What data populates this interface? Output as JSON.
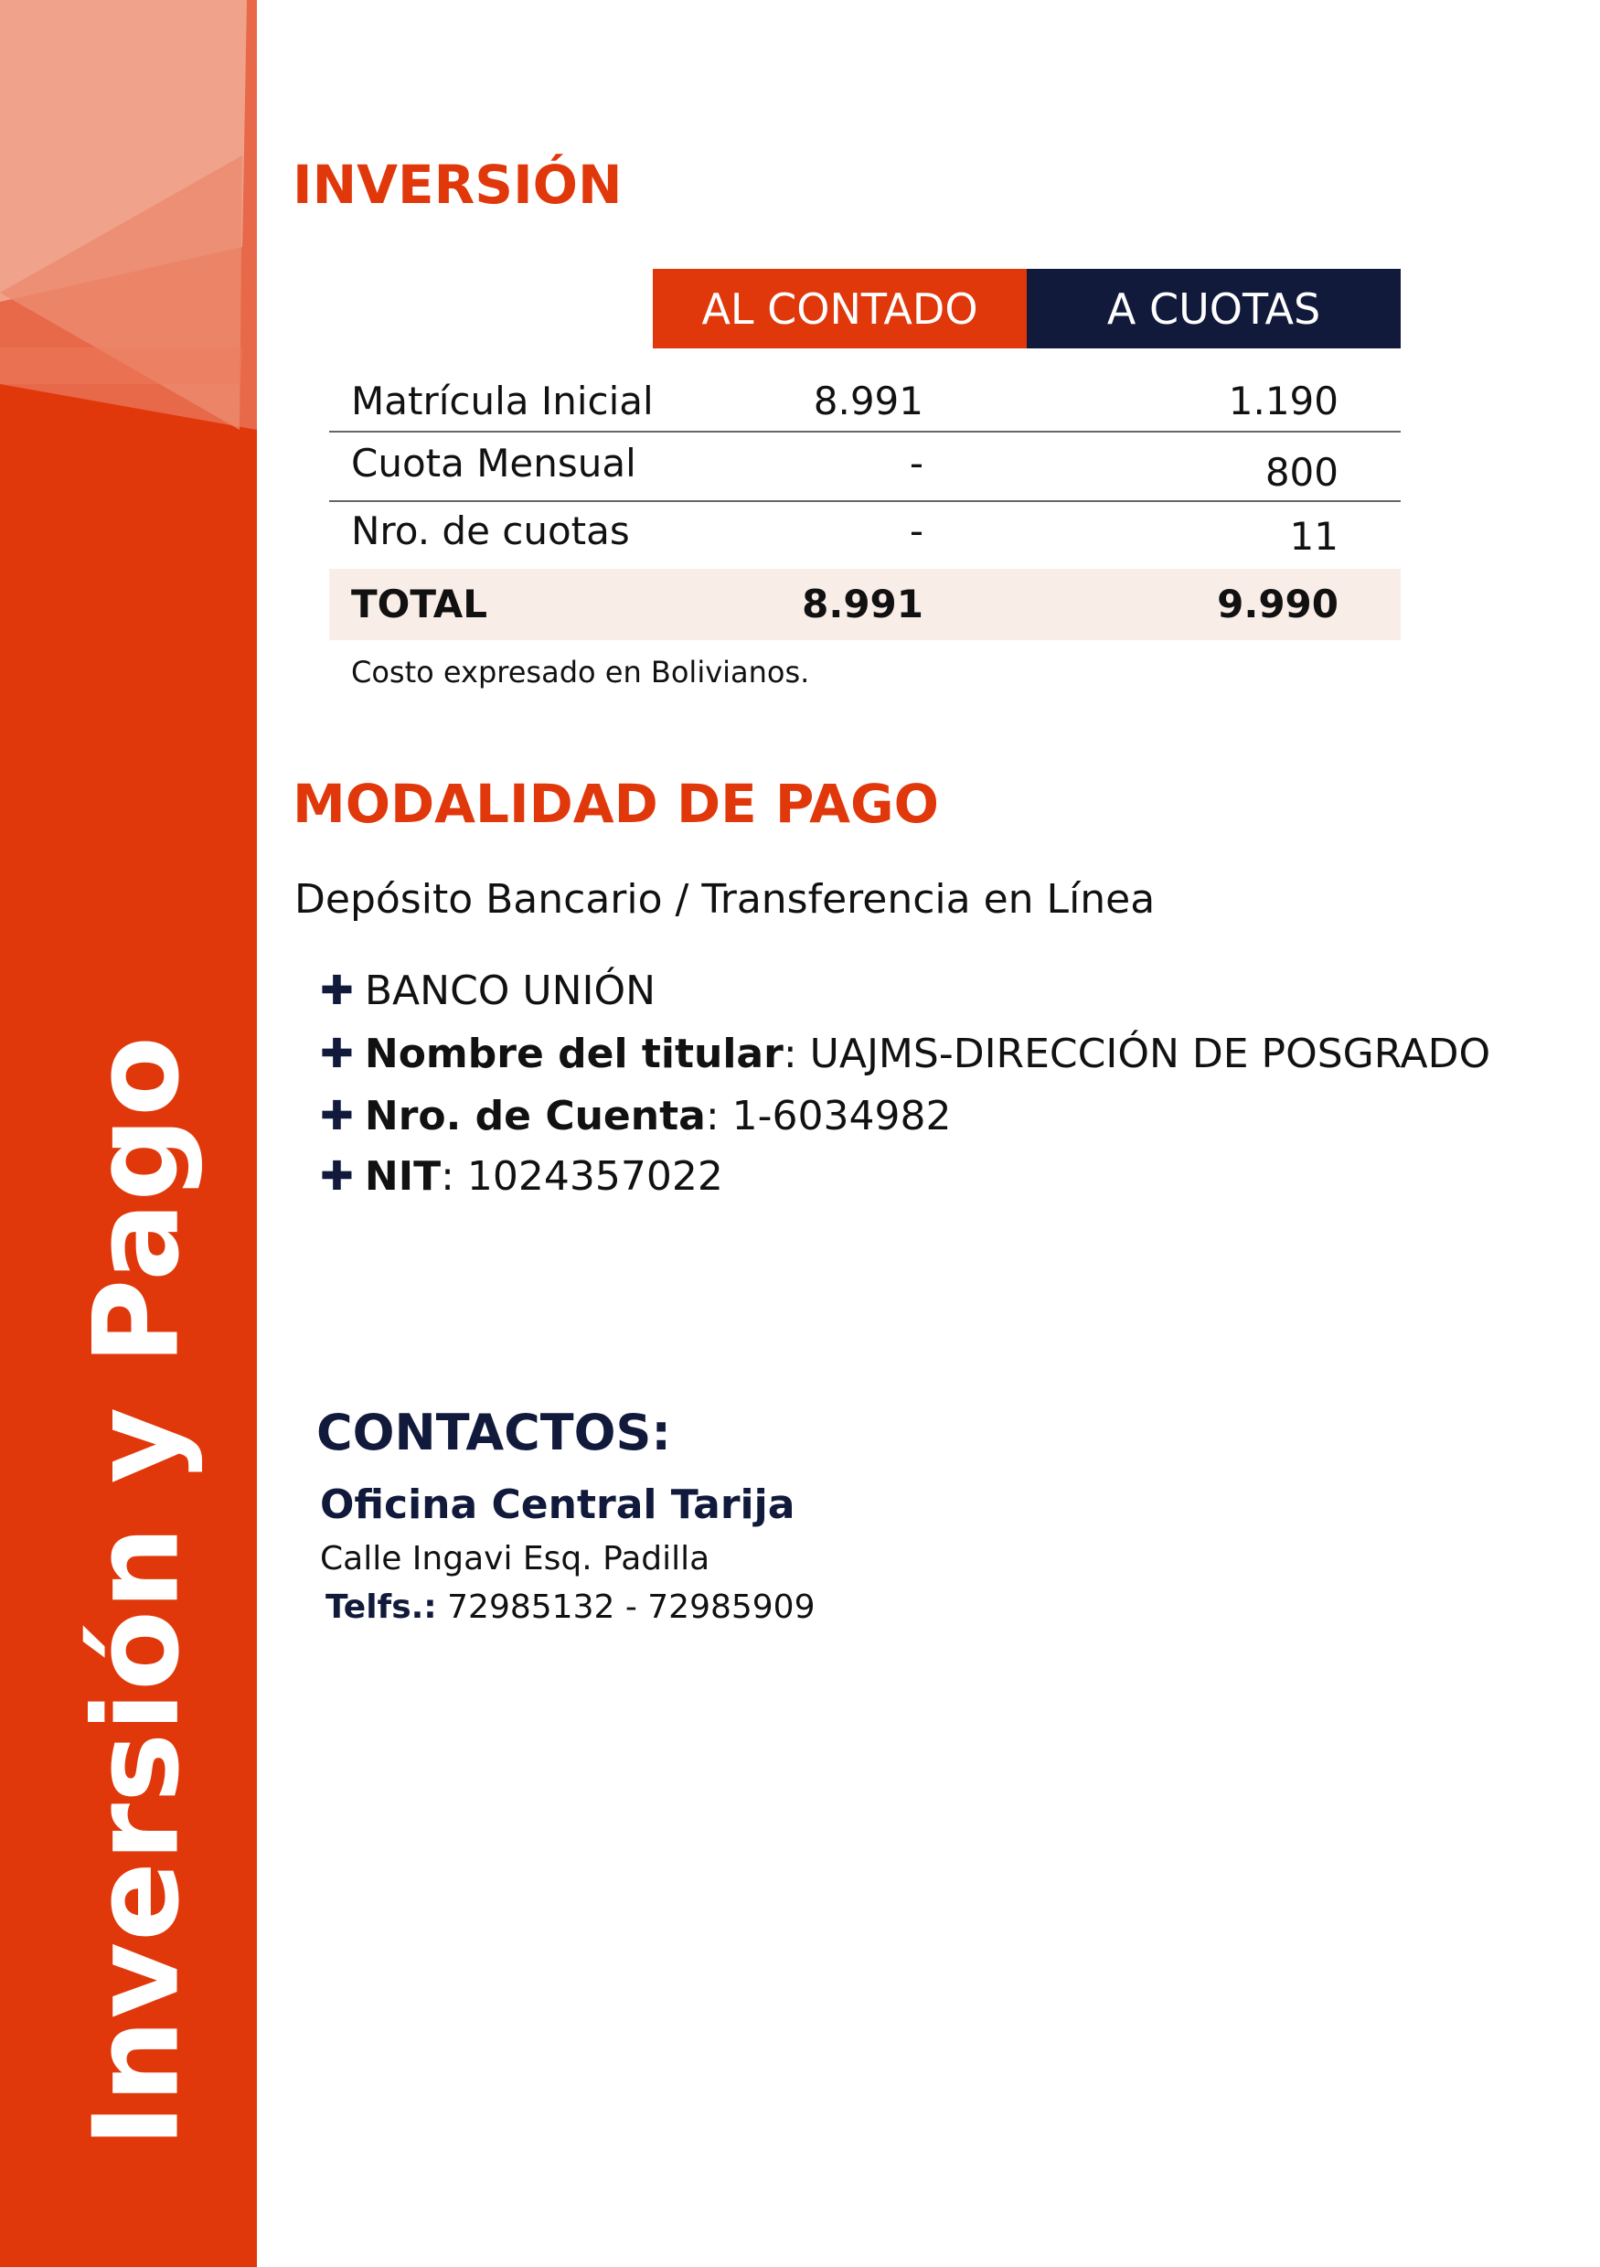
{
  "sidebar": {
    "vertical_title": "Inversión y Pago",
    "accent": "#e1380b"
  },
  "inversion": {
    "title": "INVERSIÓN",
    "columns": [
      "AL CONTADO",
      "A CUOTAS"
    ],
    "column_colors": [
      "#e1380b",
      "#121a3c"
    ],
    "rows": [
      {
        "label": "Matrícula Inicial",
        "contado": "8.991",
        "cuotas": "1.190"
      },
      {
        "label": "Cuota Mensual",
        "contado": "-",
        "cuotas": "800"
      },
      {
        "label": "Nro. de cuotas",
        "contado": "-",
        "cuotas": "11"
      }
    ],
    "total": {
      "label": "TOTAL",
      "contado": "8.991",
      "cuotas": "9.990"
    },
    "note": "Costo expresado en Bolivianos."
  },
  "pago": {
    "title": "MODALIDAD DE PAGO",
    "lead": "Depósito Bancario / Transferencia en Línea",
    "items": [
      {
        "key": "",
        "value": "BANCO UNIÓN"
      },
      {
        "key": "Nombre del titular",
        "value": ": UAJMS-DIRECCIÓN DE POSGRADO"
      },
      {
        "key": "Nro. de Cuenta",
        "value": ": 1-6034982"
      },
      {
        "key": "NIT",
        "value": ": 1024357022"
      }
    ],
    "plus": "✚"
  },
  "contactos": {
    "title": "CONTACTOS:",
    "office": "Oficina Central Tarija",
    "address": "Calle Ingavi Esq. Padilla",
    "tel_label": "Telfs.:",
    "tel": " 72985132 - 72985909"
  }
}
